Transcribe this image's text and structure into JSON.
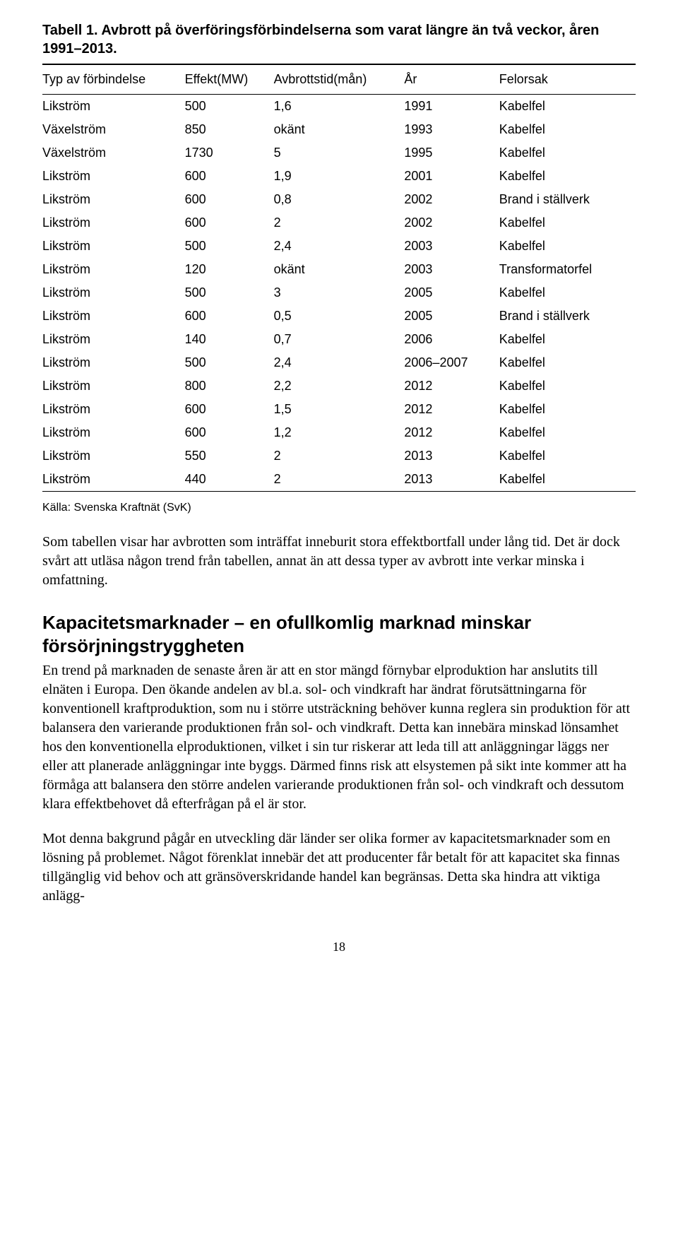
{
  "table": {
    "title": "Tabell 1. Avbrott på överföringsförbindelserna som varat längre än två veckor, åren 1991–2013.",
    "columns": [
      "Typ av förbindelse",
      "Effekt(MW)",
      "Avbrottstid(mån)",
      "År",
      "Felorsak"
    ],
    "rows": [
      [
        "Likström",
        "500",
        "1,6",
        "1991",
        "Kabelfel"
      ],
      [
        "Växelström",
        "850",
        "okänt",
        "1993",
        "Kabelfel"
      ],
      [
        "Växelström",
        "1730",
        "5",
        "1995",
        "Kabelfel"
      ],
      [
        "Likström",
        "600",
        "1,9",
        "2001",
        "Kabelfel"
      ],
      [
        "Likström",
        "600",
        "0,8",
        "2002",
        "Brand i ställverk"
      ],
      [
        "Likström",
        "600",
        "2",
        "2002",
        "Kabelfel"
      ],
      [
        "Likström",
        "500",
        "2,4",
        "2003",
        "Kabelfel"
      ],
      [
        "Likström",
        "120",
        "okänt",
        "2003",
        "Transformatorfel"
      ],
      [
        "Likström",
        "500",
        "3",
        "2005",
        "Kabelfel"
      ],
      [
        "Likström",
        "600",
        "0,5",
        "2005",
        "Brand i ställverk"
      ],
      [
        "Likström",
        "140",
        "0,7",
        "2006",
        "Kabelfel"
      ],
      [
        "Likström",
        "500",
        "2,4",
        "2006–2007",
        "Kabelfel"
      ],
      [
        "Likström",
        "800",
        "2,2",
        "2012",
        "Kabelfel"
      ],
      [
        "Likström",
        "600",
        "1,5",
        "2012",
        "Kabelfel"
      ],
      [
        "Likström",
        "600",
        "1,2",
        "2012",
        "Kabelfel"
      ],
      [
        "Likström",
        "550",
        "2",
        "2013",
        "Kabelfel"
      ],
      [
        "Likström",
        "440",
        "2",
        "2013",
        "Kabelfel"
      ]
    ],
    "header_fontsize": 18,
    "cell_fontsize": 18,
    "rule_color": "#000000"
  },
  "source": "Källa: Svenska Kraftnät (SvK)",
  "para1": "Som tabellen visar har avbrotten som inträffat inneburit stora effektbortfall under lång tid. Det är dock svårt att utläsa någon trend från tabellen, annat än att dessa typer av avbrott inte verkar minska i omfattning.",
  "section_heading": "Kapacitetsmarknader – en ofullkomlig marknad minskar försörjningstryggheten",
  "para2": "En trend på marknaden de senaste åren är att en stor mängd förnybar elproduktion har anslutits till elnäten i Europa. Den ökande andelen av bl.a. sol- och vindkraft har ändrat förutsättningarna för konventionell kraftproduktion, som nu i större utsträckning behöver kunna reglera sin produktion för att balansera den varierande produktionen från sol- och vindkraft. Detta kan innebära minskad lönsamhet hos den konventionella elproduktionen, vilket i sin tur riskerar att leda till att anläggningar läggs ner eller att planerade anläggningar inte byggs. Därmed finns risk att elsystemen på sikt inte kommer att ha förmåga att balansera den större andelen varierande produktionen från sol- och vindkraft och dessutom klara effektbehovet då efterfrågan på el är stor.",
  "para3": "Mot denna bakgrund pågår en utveckling där länder ser olika former av kapacitetsmarknader som en lösning på problemet. Något förenklat innebär det att producenter får betalt för att kapacitet ska finnas tillgänglig vid behov och att gränsöverskridande handel kan begränsas. Detta ska hindra att viktiga anlägg-",
  "page_number": "18",
  "colors": {
    "text": "#000000",
    "background": "#ffffff"
  }
}
